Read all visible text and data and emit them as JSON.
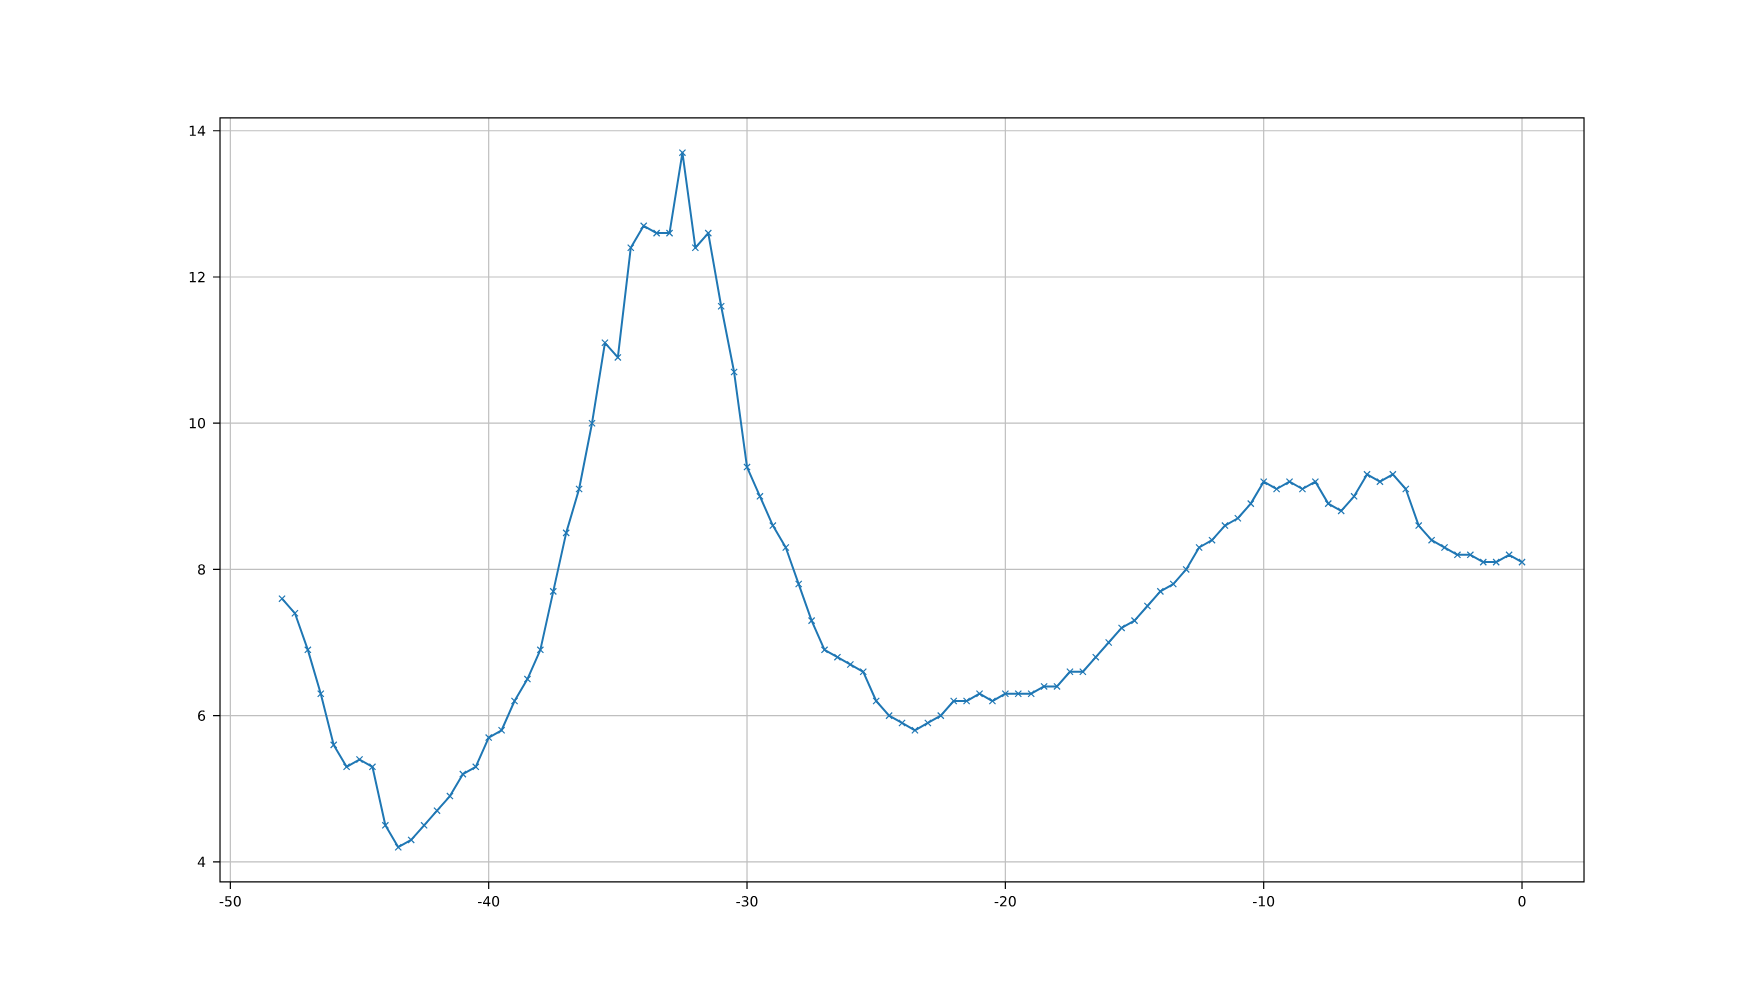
{
  "chart_data": {
    "type": "line",
    "color": "#1f77b4",
    "marker": "cross",
    "line_style": "solid",
    "grid": true,
    "x": [
      -48,
      -47.5,
      -47,
      -46.5,
      -46,
      -45.5,
      -45,
      -44.5,
      -44,
      -43.5,
      -43,
      -42.5,
      -42,
      -41.5,
      -41,
      -40.5,
      -40,
      -39.5,
      -39,
      -38.5,
      -38,
      -37.5,
      -37,
      -36.5,
      -36,
      -35.5,
      -35,
      -34.5,
      -34,
      -33.5,
      -33,
      -32.5,
      -32,
      -31.5,
      -31,
      -30.5,
      -30,
      -29.5,
      -29,
      -28.5,
      -28,
      -27.5,
      -27,
      -26.5,
      -26,
      -25.5,
      -25,
      -24.5,
      -24,
      -23.5,
      -23,
      -22.5,
      -22,
      -21.5,
      -21,
      -20.5,
      -20,
      -19.5,
      -19,
      -18.5,
      -18,
      -17.5,
      -17,
      -16.5,
      -16,
      -15.5,
      -15,
      -14.5,
      -14,
      -13.5,
      -13,
      -12.5,
      -12,
      -11.5,
      -11,
      -10.5,
      -10,
      -9.5,
      -9,
      -8.5,
      -8,
      -7.5,
      -7,
      -6.5,
      -6,
      -5.5,
      -5,
      -4.5,
      -4,
      -3.5,
      -3,
      -2.5,
      -2,
      -1.5,
      -1,
      -0.5,
      0
    ],
    "values": [
      7.6,
      7.4,
      6.9,
      6.3,
      5.6,
      5.3,
      5.4,
      5.3,
      4.5,
      4.2,
      4.3,
      4.5,
      4.7,
      4.9,
      5.2,
      5.3,
      5.7,
      5.8,
      6.2,
      6.5,
      6.9,
      7.7,
      8.5,
      9.1,
      10.0,
      11.1,
      10.9,
      12.4,
      12.7,
      12.6,
      12.6,
      13.7,
      12.4,
      12.6,
      11.6,
      10.7,
      9.4,
      9.0,
      8.6,
      8.3,
      7.8,
      7.3,
      6.9,
      6.8,
      6.7,
      6.6,
      6.2,
      6.0,
      5.9,
      5.8,
      5.9,
      6.0,
      6.2,
      6.2,
      6.3,
      6.2,
      6.3,
      6.3,
      6.3,
      6.4,
      6.4,
      6.6,
      6.6,
      6.8,
      7.0,
      7.2,
      7.3,
      7.5,
      7.7,
      7.8,
      8.0,
      8.3,
      8.4,
      8.6,
      8.7,
      8.9,
      9.2,
      9.1,
      9.2,
      9.1,
      9.2,
      8.9,
      8.8,
      9.0,
      9.3,
      9.2,
      9.3,
      9.1,
      8.6,
      8.4,
      8.3,
      8.2,
      8.2,
      8.1,
      8.1,
      8.2,
      8.1
    ],
    "xlim": [
      -50.4,
      2.4
    ],
    "ylim": [
      3.725,
      14.175
    ],
    "xticks": [
      -50,
      -40,
      -30,
      -20,
      -10,
      0
    ],
    "yticks": [
      4,
      6,
      8,
      10,
      12,
      14
    ]
  }
}
